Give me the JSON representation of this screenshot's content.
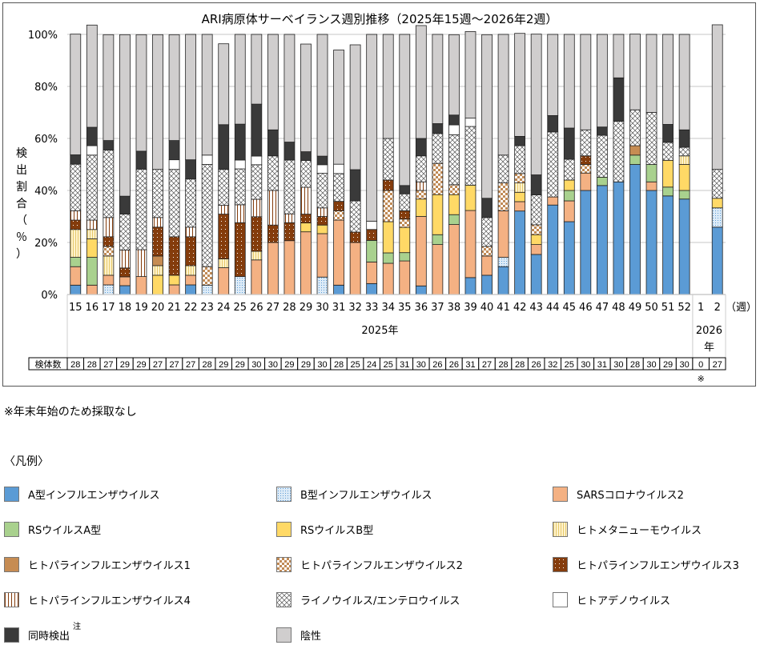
{
  "chart_data": {
    "type": "bar",
    "stacked": true,
    "title": "ARI病原体サーベイランス週別推移（2025年15週～2026年2週）",
    "ylabel": "検出割合（％）",
    "xlabel_unit": "（週）",
    "ylim": [
      0,
      100
    ],
    "yticks": [
      "0%",
      "20%",
      "40%",
      "60%",
      "80%",
      "100%"
    ],
    "grid": true,
    "categories": [
      "15",
      "16",
      "17",
      "18",
      "19",
      "20",
      "21",
      "22",
      "23",
      "24",
      "25",
      "26",
      "27",
      "28",
      "29",
      "30",
      "31",
      "32",
      "33",
      "34",
      "35",
      "36",
      "37",
      "38",
      "39",
      "40",
      "41",
      "42",
      "43",
      "44",
      "45",
      "46",
      "47",
      "48",
      "49",
      "50",
      "51",
      "52",
      "1",
      "2"
    ],
    "year_groups": [
      {
        "label": "2025年",
        "from": "15",
        "to": "52"
      },
      {
        "label": "2026年",
        "from": "1",
        "to": "2"
      }
    ],
    "specimen_count_label": "検体数",
    "specimen_counts": [
      28,
      28,
      27,
      29,
      29,
      27,
      27,
      27,
      28,
      29,
      29,
      30,
      30,
      29,
      29,
      30,
      28,
      25,
      24,
      25,
      31,
      30,
      26,
      26,
      31,
      27,
      28,
      28,
      26,
      32,
      25,
      30,
      31,
      30,
      28,
      30,
      29,
      30,
      0,
      27
    ],
    "specimen_note_mark": "※",
    "specimen_note_index": 38,
    "series": [
      {
        "name": "A型インフルエンザウイルス",
        "color": "#5b9bd5",
        "pattern": "solid",
        "values": [
          3.6,
          0,
          0,
          3.4,
          0,
          0,
          0,
          3.7,
          0,
          0,
          0,
          0,
          0,
          0,
          0,
          0,
          3.6,
          0,
          4.2,
          0,
          0,
          3.3,
          0,
          0,
          6.5,
          7.4,
          10.7,
          32.1,
          15.4,
          34.4,
          28,
          40,
          41.9,
          43.3,
          50,
          40,
          37.9,
          36.7,
          0,
          25.9
        ]
      },
      {
        "name": "B型インフルエンザウイルス",
        "color": "#ddebf7",
        "pattern": "dots",
        "values": [
          0,
          0,
          3.7,
          0,
          0,
          0,
          0,
          0,
          3.6,
          0,
          6.9,
          0,
          0,
          0,
          0,
          6.7,
          0,
          0,
          0,
          0,
          0,
          0,
          0,
          0,
          0,
          0,
          3.6,
          0,
          0,
          0,
          0,
          0,
          0,
          0,
          0,
          0,
          0,
          0,
          0,
          7.4
        ]
      },
      {
        "name": "SARSコロナウイルス2",
        "color": "#f4b183",
        "pattern": "solid",
        "values": [
          7.1,
          3.6,
          3.7,
          3.4,
          6.9,
          0,
          3.7,
          3.7,
          0,
          10.3,
          0,
          13.3,
          20,
          20.7,
          24.1,
          16.7,
          25,
          20,
          8.3,
          12,
          12.9,
          26.7,
          19.2,
          26.9,
          25.8,
          7.4,
          17.9,
          3.6,
          3.8,
          3.1,
          8,
          6.7,
          0,
          0,
          0,
          3.3,
          0,
          0,
          0,
          0
        ]
      },
      {
        "name": "RSウイルスA型",
        "color": "#a9d18e",
        "pattern": "solid",
        "values": [
          3.6,
          10.7,
          0,
          0,
          0,
          0,
          0,
          0,
          0,
          0,
          0,
          0,
          0,
          0,
          0,
          0,
          0,
          0,
          8.3,
          4,
          3.2,
          0,
          3.8,
          3.8,
          0,
          0,
          0,
          0,
          0,
          0,
          4,
          0,
          3.2,
          0,
          3.6,
          6.7,
          3.4,
          3.3,
          0,
          0
        ]
      },
      {
        "name": "RSウイルスB型",
        "color": "#ffd966",
        "pattern": "solid",
        "values": [
          0,
          7.1,
          0,
          0,
          0,
          7.4,
          3.7,
          0,
          0,
          0,
          0,
          0,
          0,
          0,
          3.4,
          3.3,
          0,
          0,
          0,
          12,
          9.7,
          6.7,
          15.4,
          7.7,
          9.7,
          0,
          0,
          3.6,
          3.8,
          0,
          4,
          0,
          0,
          0,
          0,
          0,
          10.3,
          10,
          0,
          3.7
        ]
      },
      {
        "name": "ヒトメタニューモウイルス",
        "color": "#fff2cc",
        "pattern": "vstripes-yellow",
        "values": [
          10.7,
          3.6,
          7.4,
          0,
          0,
          3.7,
          0,
          3.7,
          0,
          3.4,
          0,
          3.3,
          0,
          0,
          0,
          0,
          0,
          0,
          0,
          0,
          0,
          0,
          0,
          0,
          0,
          0,
          0,
          3.6,
          0,
          0,
          0,
          0,
          0,
          0,
          0,
          0,
          0,
          3.3,
          0,
          0
        ]
      },
      {
        "name": "ヒトパラインフルエンザウイルス1",
        "color": "#c68c53",
        "pattern": "solid",
        "values": [
          0,
          0,
          0,
          0,
          0,
          3.7,
          0,
          0,
          0,
          0,
          0,
          0,
          0,
          0,
          0,
          0,
          0,
          0,
          0,
          0,
          0,
          0,
          0,
          0,
          0,
          0,
          0,
          0,
          0,
          0,
          0,
          0,
          0,
          0,
          3.6,
          0,
          0,
          0,
          0,
          0
        ]
      },
      {
        "name": "ヒトパラインフルエンザウイルス2",
        "color": "#e8c9a6",
        "pattern": "checker",
        "values": [
          0,
          0,
          3.7,
          0,
          0,
          0,
          0,
          0,
          7.1,
          0,
          0,
          0,
          0,
          0,
          0,
          0,
          3.6,
          0,
          0,
          12,
          3.2,
          3.3,
          12,
          3.8,
          0,
          3.7,
          10.7,
          3.6,
          3.8,
          0,
          0,
          3.3,
          0,
          0,
          0,
          0,
          0,
          0,
          0,
          0
        ]
      },
      {
        "name": "ヒトパラインフルエンザウイルス3",
        "color": "#843c0c",
        "pattern": "dots-white",
        "values": [
          3.6,
          0,
          3.7,
          3.4,
          0,
          11.1,
          14.8,
          11.1,
          0,
          17.2,
          20.7,
          13.3,
          6.7,
          6.9,
          3.4,
          3.3,
          3.6,
          4,
          4.2,
          4,
          3.2,
          0,
          0,
          0,
          0,
          0,
          0,
          0,
          0,
          0,
          0,
          3.3,
          0,
          0,
          0,
          0,
          0,
          0,
          0,
          0
        ]
      },
      {
        "name": "ヒトパラインフルエンザウイルス4",
        "color": "#fbe5d6",
        "pattern": "vstripes-brown",
        "values": [
          3.6,
          3.6,
          7.4,
          6.9,
          10.3,
          3.7,
          0,
          3.7,
          0,
          3.4,
          6.9,
          6.7,
          13.3,
          3.4,
          10.3,
          3.3,
          0,
          0,
          0,
          0,
          0,
          3.3,
          0,
          0,
          0,
          0,
          0,
          0,
          0,
          0,
          0,
          0,
          0,
          0,
          0,
          0,
          0,
          0,
          0,
          0
        ]
      },
      {
        "name": "ライノウイルス/エンテロウイルス",
        "color": "#ffffff",
        "pattern": "crosshatch",
        "values": [
          17.9,
          25,
          25.9,
          13.8,
          31,
          18.5,
          25.9,
          18.5,
          39.3,
          13.8,
          13.8,
          13.3,
          13.3,
          20.7,
          10.3,
          13.3,
          10.7,
          12,
          0,
          16,
          6.5,
          10,
          11.5,
          19.2,
          22.6,
          11.1,
          10.7,
          10.7,
          11.5,
          25,
          8,
          10,
          16.1,
          23.3,
          13.8,
          20,
          6.9,
          3.3,
          0,
          11.1
        ]
      },
      {
        "name": "ヒトアデノウイルス",
        "color": "#ffffff",
        "pattern": "solid",
        "values": [
          0,
          3.6,
          0,
          0,
          0,
          0,
          3.7,
          0,
          3.6,
          0,
          3.4,
          3.3,
          0,
          0,
          0,
          3.3,
          3.6,
          0,
          3.2,
          0,
          0,
          0,
          0,
          3.8,
          3.2,
          0,
          0,
          0,
          0,
          0,
          0,
          0,
          0,
          0,
          0,
          0,
          0,
          0,
          0,
          0
        ]
      },
      {
        "name": "同時検出",
        "color": "#3a3a3a",
        "pattern": "solid",
        "values": [
          3.6,
          7.1,
          3.7,
          6.9,
          6.9,
          0,
          7.4,
          7.4,
          0,
          17.2,
          13.8,
          20,
          10,
          6.9,
          3.4,
          3.3,
          0,
          12,
          0,
          0,
          3.2,
          6.7,
          3.8,
          3.8,
          0,
          7.4,
          0,
          3.6,
          7.7,
          6.3,
          12,
          0,
          3.2,
          16.7,
          0,
          0,
          6.9,
          6.7,
          0,
          0
        ]
      },
      {
        "name": "陰性",
        "color": "#d0cece",
        "pattern": "solid",
        "values": [
          46.4,
          39.3,
          40.7,
          62.1,
          44.8,
          51.8,
          40.7,
          48.2,
          46.4,
          31.1,
          34.5,
          26.8,
          36.7,
          41.4,
          41.4,
          46.8,
          43.9,
          48,
          71.8,
          40,
          58.1,
          43.4,
          34.3,
          30.9,
          33.3,
          62.9,
          46.4,
          39.6,
          54.1,
          31.2,
          36,
          36.7,
          35.6,
          16.7,
          29.1,
          30,
          34.6,
          36.7,
          0,
          55.6
        ]
      }
    ]
  },
  "notes": {
    "footnote": "※年末年始のため採取なし",
    "legend_title": "〈凡例〉",
    "codetection_superscript": "注"
  }
}
